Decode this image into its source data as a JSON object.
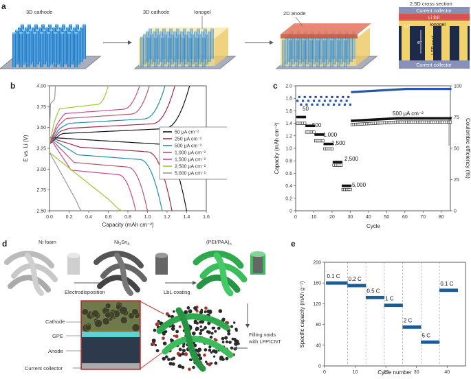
{
  "panel_labels": {
    "a": "a",
    "b": "b",
    "c": "c",
    "d": "d",
    "e": "e"
  },
  "panel_a": {
    "step1": "3D cathode",
    "step2_cathode": "3D cathode",
    "step2_ionogel": "Ionogel",
    "step3": "2D anode",
    "cross_section_title": "2.5D cross section",
    "current_collector_top": "Current collector",
    "li_foil": "Li foil",
    "ionogel": "Ionogel",
    "li_ion": "Li⁺",
    "electron": "e⁻",
    "lfp_post": "LFP post",
    "current_collector_bottom": "Current collector",
    "colors": {
      "pillar": "#3a8fd6",
      "ionogel": "#f7dc88",
      "anode": "#e0745a",
      "collector": "#8891b8",
      "dark": "#1e2a4a"
    }
  },
  "chart_data": [
    {
      "type": "line",
      "panel": "b",
      "xlabel": "Capacity (mAh cm⁻²)",
      "ylabel": "E vs. Li (V)",
      "xlim": [
        0,
        1.6
      ],
      "ylim": [
        2.5,
        4.0
      ],
      "xticks": [
        "0.0",
        "0.2",
        "0.4",
        "0.6",
        "0.8",
        "1.0",
        "1.2",
        "1.4",
        "1.6"
      ],
      "yticks": [
        "2.50",
        "2.75",
        "3.00",
        "3.25",
        "3.50",
        "3.75",
        "4.00"
      ],
      "series": [
        {
          "name": "50 μA cm⁻²",
          "color": "#111111",
          "charge_end": 1.43,
          "discharge_end": 1.4
        },
        {
          "name": "250 μA cm⁻²",
          "color": "#a3264b",
          "charge_end": 1.28,
          "discharge_end": 1.25
        },
        {
          "name": "500 μA cm⁻²",
          "color": "#1b8eae",
          "charge_end": 1.18,
          "discharge_end": 1.15
        },
        {
          "name": "1,000 μA cm⁻²",
          "color": "#b4556f",
          "charge_end": 1.02,
          "discharge_end": 1.0
        },
        {
          "name": "1,500 μA cm⁻²",
          "color": "#c44a9a",
          "charge_end": 0.92,
          "discharge_end": 0.88
        },
        {
          "name": "2,500 μA cm⁻²",
          "color": "#9acb2b",
          "charge_end": 0.6,
          "discharge_end": 0.75
        },
        {
          "name": "5,000 μA cm⁻²",
          "color": "#999999",
          "charge_end": 0.06,
          "discharge_end": 0.33
        }
      ]
    },
    {
      "type": "scatter",
      "panel": "c",
      "xlabel": "Cycle",
      "ylabel": "Capacity (mAh cm⁻²)",
      "ylabel_right": "Coulombic efficiency (%)",
      "xlim": [
        0,
        85
      ],
      "ylim": [
        0,
        2.0
      ],
      "ylim_right": [
        0,
        100
      ],
      "xticks": [
        "0",
        "10",
        "20",
        "30",
        "40",
        "50",
        "60",
        "70",
        "80"
      ],
      "yticks": [
        "0",
        "0.2",
        "0.4",
        "0.6",
        "0.8",
        "1.0",
        "1.2",
        "1.4",
        "1.6",
        "1.8",
        "2.0"
      ],
      "yticks_right": [
        "0",
        "25",
        "50",
        "75",
        "100"
      ],
      "annotations": [
        "50",
        "500",
        "1,000",
        "1,500",
        "2,500",
        "5,000",
        "500 μA cm⁻²"
      ],
      "rate_groups": [
        {
          "label": "50",
          "start": 1,
          "end": 5,
          "charge": 1.5,
          "discharge": 1.4
        },
        {
          "label": "500",
          "start": 6,
          "end": 10,
          "charge": 1.36,
          "discharge": 1.26
        },
        {
          "label": "1,000",
          "start": 11,
          "end": 15,
          "charge": 1.22,
          "discharge": 1.12
        },
        {
          "label": "1,500",
          "start": 16,
          "end": 20,
          "charge": 1.07,
          "discharge": 0.99
        },
        {
          "label": "2,500",
          "start": 21,
          "end": 25,
          "charge": 0.78,
          "discharge": 0.73
        },
        {
          "label": "5,000",
          "start": 26,
          "end": 30,
          "charge": 0.4,
          "discharge": 0.34
        },
        {
          "label": "500 μA cm⁻²",
          "start": 31,
          "end": 85,
          "charge": 1.44,
          "discharge": 1.38
        }
      ]
    },
    {
      "type": "scatter",
      "panel": "e",
      "xlabel": "Cycle number",
      "ylabel": "Specific capacity (mAh g⁻¹)",
      "xlim": [
        0,
        46
      ],
      "ylim": [
        0,
        200
      ],
      "xticks": [
        "0",
        "10",
        "20",
        "30",
        "40"
      ],
      "yticks": [
        "0",
        "40",
        "80",
        "120",
        "160",
        "200"
      ],
      "color": "#1c5c96",
      "groups": [
        {
          "label": "0.1 C",
          "x": [
            1,
            2,
            3,
            4,
            5,
            6,
            7
          ],
          "y": 160
        },
        {
          "label": "0.2 C",
          "x": [
            8,
            9,
            10,
            11,
            12,
            13
          ],
          "y": 155
        },
        {
          "label": "0.5 C",
          "x": [
            14,
            15,
            16,
            17,
            18,
            19
          ],
          "y": 132
        },
        {
          "label": "1 C",
          "x": [
            20,
            21,
            22,
            23,
            24,
            25
          ],
          "y": 117
        },
        {
          "label": "2 C",
          "x": [
            26,
            27,
            28,
            29,
            30,
            31
          ],
          "y": 75
        },
        {
          "label": "5 C",
          "x": [
            32,
            33,
            34,
            35,
            36,
            37
          ],
          "y": 46
        },
        {
          "label": "0.1 C",
          "x": [
            38,
            39,
            40,
            41,
            42,
            43
          ],
          "y": 146
        }
      ]
    }
  ],
  "panel_d": {
    "ni_foam": "Ni foam",
    "ni3sn4": "Ni",
    "ni3sn4_sub1": "3",
    "ni3sn4_mid": "Sn",
    "ni3sn4_sub2": "4",
    "pei_paa": "(PEI/PAA)",
    "pei_paa_sub": "n",
    "electrodisposition": "Electrodisposition",
    "lbl_coating": "LbL coating",
    "cathode": "Cathode",
    "gpe": "GPE",
    "anode": "Anode",
    "current_collector": "Current collector",
    "filling_line1": "Filling voids",
    "filling_line2": "with LFP/CNT"
  }
}
